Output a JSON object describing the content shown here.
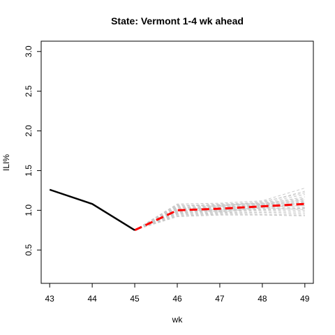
{
  "chart_data": {
    "type": "line",
    "title": "State: Vermont 1-4 wk ahead",
    "xlabel": "wk",
    "ylabel": "ILI%",
    "xlim": [
      42.8,
      49.2
    ],
    "ylim": [
      0.08,
      3.13
    ],
    "x_ticks": [
      "43",
      "44",
      "45",
      "46",
      "47",
      "48",
      "49"
    ],
    "y_ticks": [
      "0.5",
      "1.0",
      "1.5",
      "2.0",
      "2.5",
      "3.0"
    ],
    "grid": false,
    "legend": "none",
    "series": [
      {
        "role": "observed",
        "color": "#000000",
        "x": [
          43,
          44,
          45
        ],
        "y": [
          1.26,
          1.08,
          0.75
        ]
      },
      {
        "role": "point-forecast",
        "color": "#ff0000",
        "x": [
          45,
          46,
          47,
          48,
          49
        ],
        "y": [
          0.75,
          1.0,
          1.02,
          1.05,
          1.08
        ]
      }
    ],
    "ensemble": {
      "role": "trajectories",
      "color": "#c8c8c8",
      "x": [
        45,
        46,
        47,
        48,
        49
      ],
      "trajectories": [
        [
          0.75,
          1.08,
          1.09,
          1.12,
          1.28
        ],
        [
          0.75,
          1.06,
          1.08,
          1.1,
          1.24
        ],
        [
          0.75,
          1.05,
          1.07,
          1.09,
          1.2
        ],
        [
          0.75,
          1.04,
          1.06,
          1.08,
          1.17
        ],
        [
          0.75,
          1.03,
          1.05,
          1.07,
          1.14
        ],
        [
          0.75,
          1.02,
          1.04,
          1.06,
          1.12
        ],
        [
          0.75,
          1.01,
          1.03,
          1.05,
          1.1
        ],
        [
          0.75,
          1.0,
          1.02,
          1.04,
          1.08
        ],
        [
          0.75,
          0.99,
          1.01,
          1.03,
          1.06
        ],
        [
          0.75,
          0.98,
          1.0,
          1.02,
          1.04
        ],
        [
          0.75,
          0.97,
          0.99,
          1.01,
          1.02
        ],
        [
          0.75,
          0.96,
          0.98,
          1.0,
          1.0
        ],
        [
          0.75,
          0.95,
          0.97,
          0.98,
          0.98
        ],
        [
          0.75,
          0.94,
          0.96,
          0.97,
          0.96
        ],
        [
          0.75,
          0.93,
          0.95,
          0.95,
          0.94
        ],
        [
          0.75,
          0.92,
          0.94,
          0.94,
          0.93
        ],
        [
          0.75,
          1.07,
          1.05,
          1.11,
          1.22
        ],
        [
          0.75,
          1.01,
          1.07,
          1.09,
          1.15
        ],
        [
          0.75,
          0.99,
          1.04,
          1.07,
          1.11
        ],
        [
          0.75,
          0.97,
          1.02,
          1.06,
          1.09
        ],
        [
          0.75,
          1.04,
          1.0,
          1.04,
          1.06
        ],
        [
          0.75,
          0.96,
          1.01,
          1.0,
          1.03
        ],
        [
          0.75,
          1.02,
          0.98,
          1.03,
          1.01
        ],
        [
          0.75,
          0.98,
          1.06,
          1.08,
          1.13
        ]
      ]
    }
  }
}
